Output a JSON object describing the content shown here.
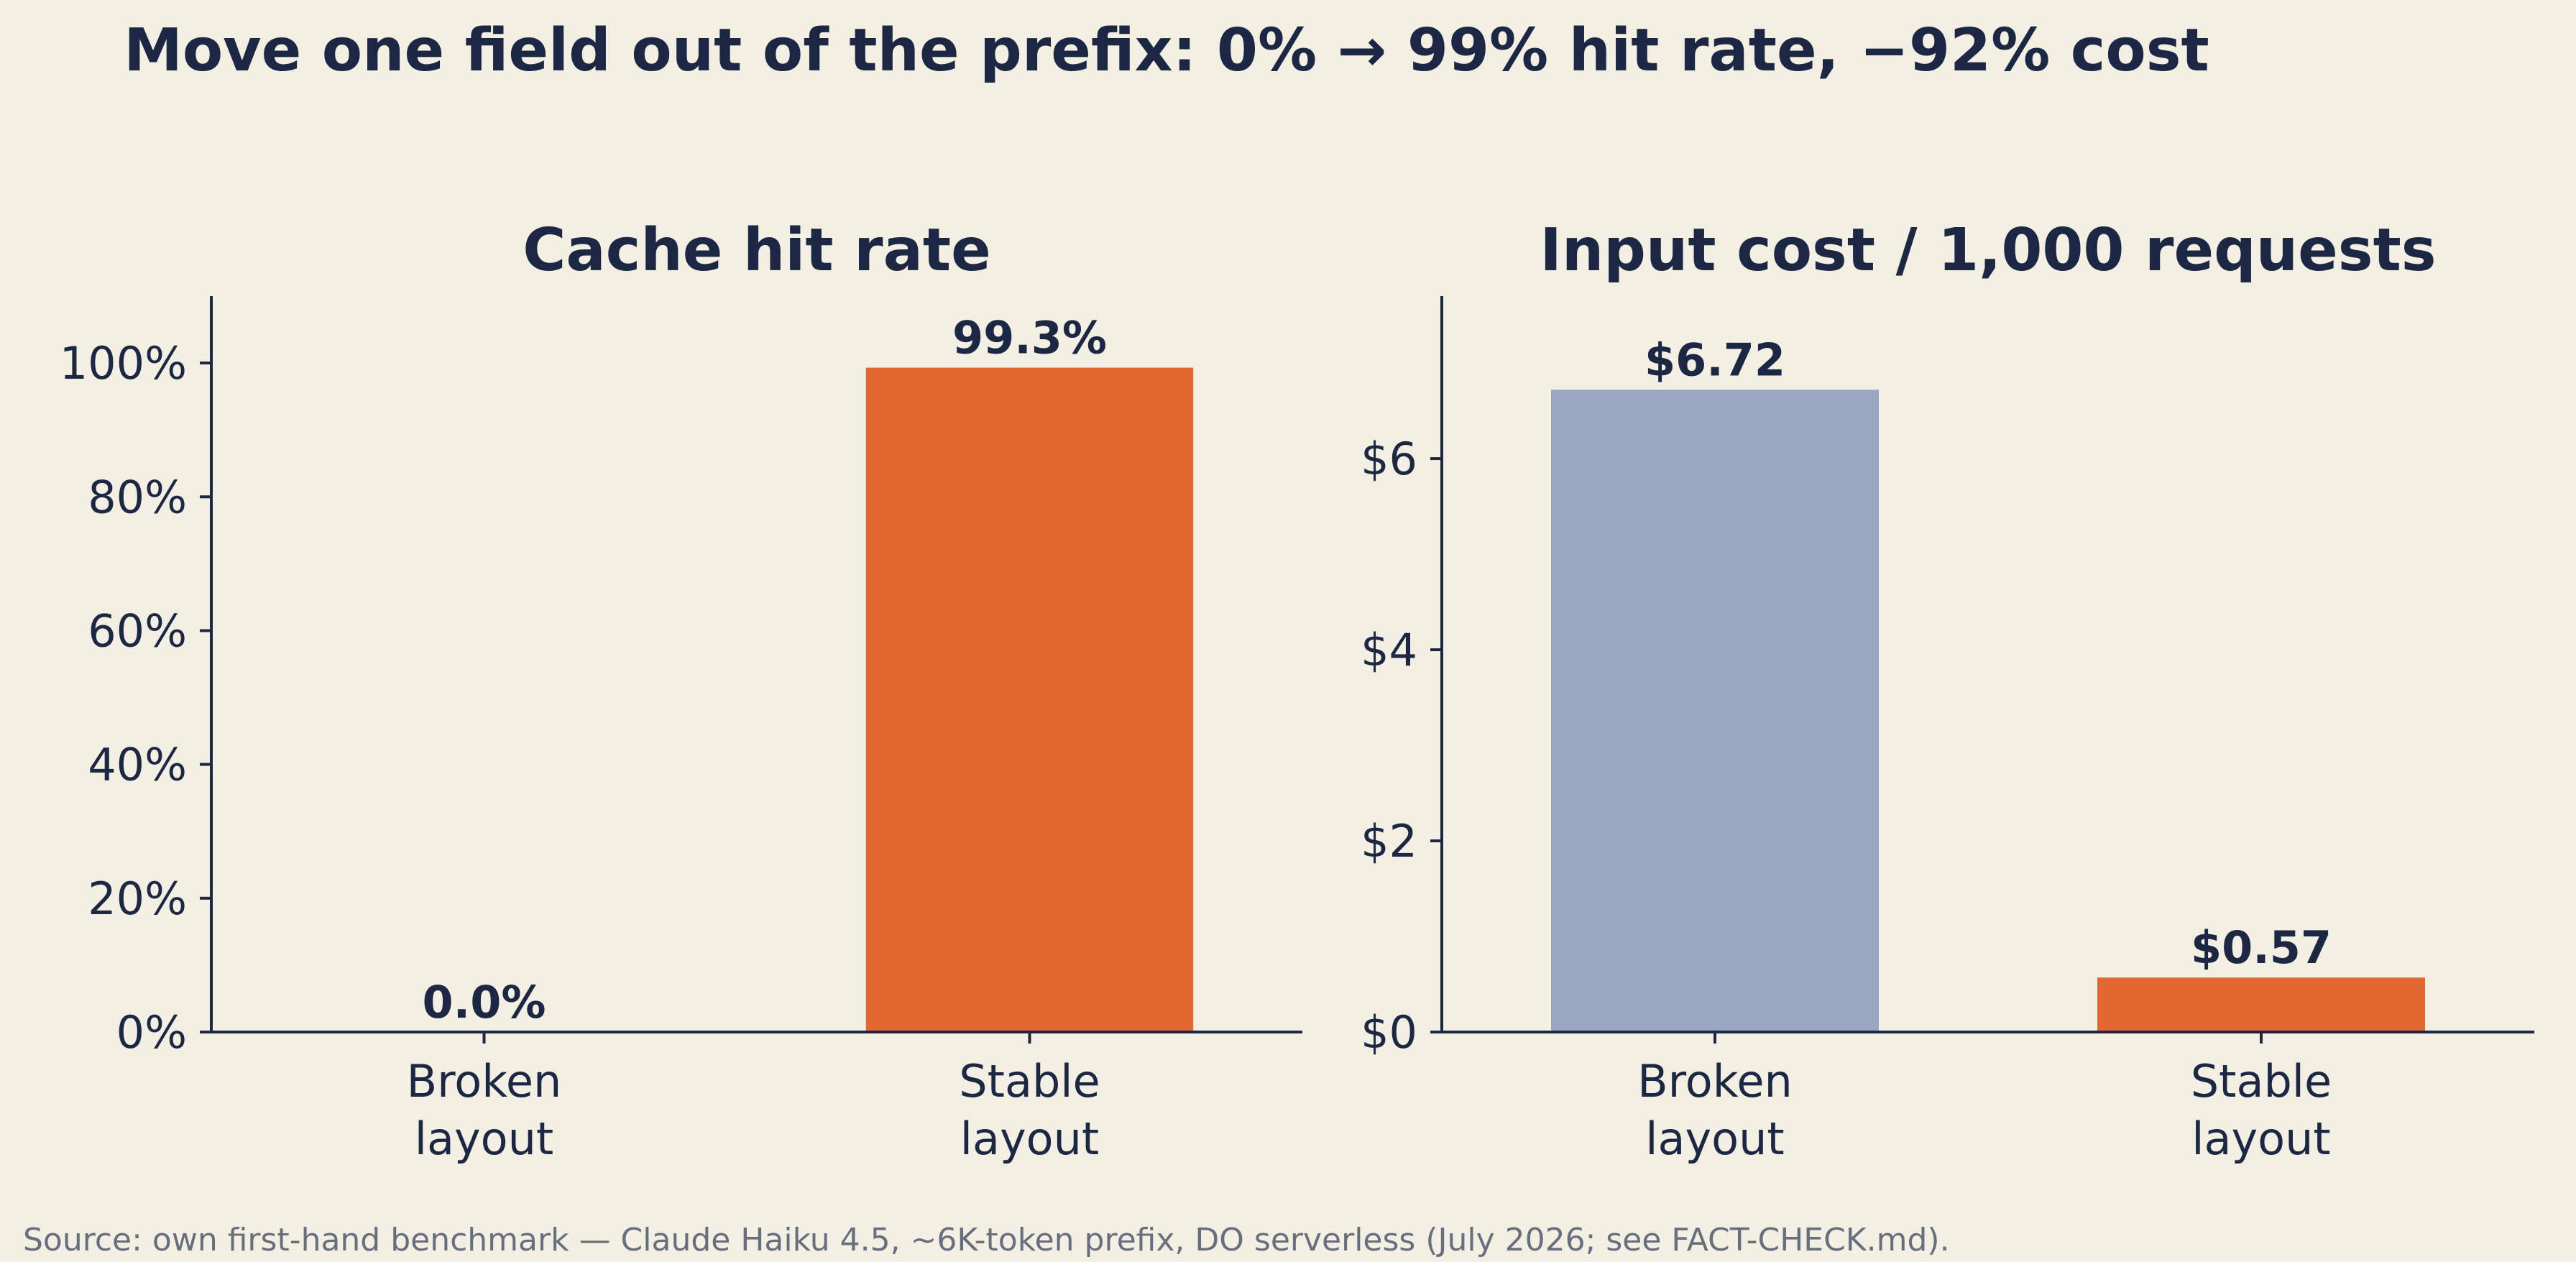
{
  "figure_title": "Move one field out of the prefix: 0% → 99% hit rate, −92% cost",
  "source_note": "Source: own first-hand benchmark — Claude Haiku 4.5, ~6K-token prefix, DO serverless (July 2026; see FACT-CHECK.md).",
  "colors": {
    "background": "#f3efe3",
    "text": "#1c2843",
    "accent_orange": "#e26730",
    "muted_blue": "#98a6c0",
    "note_gray": "#676f7e"
  },
  "chart_data": [
    {
      "type": "bar",
      "title": "Cache hit rate",
      "categories": [
        [
          "Broken",
          "layout"
        ],
        [
          "Stable",
          "layout"
        ]
      ],
      "values": [
        0.0,
        99.3
      ],
      "data_labels": [
        "0.0%",
        "99.3%"
      ],
      "bar_colors": [
        "#98a6c0",
        "#e26730"
      ],
      "yticks": [
        0,
        20,
        40,
        60,
        80,
        100
      ],
      "ytick_labels": [
        "0%",
        "20%",
        "40%",
        "60%",
        "80%",
        "100%"
      ],
      "ylim": [
        0,
        110
      ],
      "xlabel": "",
      "ylabel": "",
      "grid": false,
      "legend": false
    },
    {
      "type": "bar",
      "title": "Input cost / 1,000 requests",
      "categories": [
        [
          "Broken",
          "layout"
        ],
        [
          "Stable",
          "layout"
        ]
      ],
      "values": [
        6.72,
        0.57
      ],
      "data_labels": [
        "$6.72",
        "$0.57"
      ],
      "bar_colors": [
        "#98a6c0",
        "#e26730"
      ],
      "yticks": [
        0,
        2,
        4,
        6
      ],
      "ytick_labels": [
        "$0",
        "$2",
        "$4",
        "$6"
      ],
      "ylim": [
        0,
        7.7
      ],
      "xlabel": "",
      "ylabel": "",
      "grid": false,
      "legend": false
    }
  ]
}
